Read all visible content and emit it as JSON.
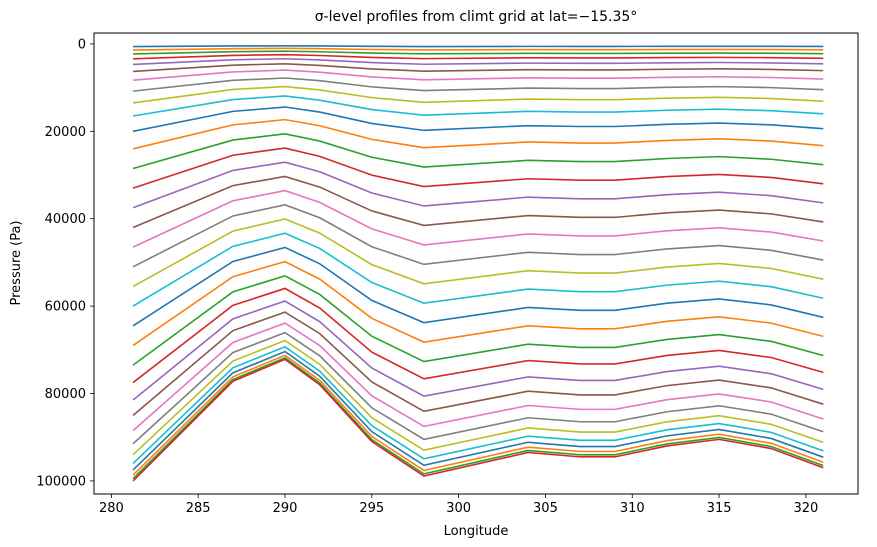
{
  "chart_data": {
    "type": "line",
    "title": "σ-level profiles from climt grid at lat=−15.35°",
    "xlabel": "Longitude",
    "ylabel": "Pressure (Pa)",
    "xlim": [
      279.0,
      323.0
    ],
    "ylim": [
      103000,
      -2500
    ],
    "y_inverted": true,
    "grid": false,
    "legend": "none",
    "xticks": [
      280,
      285,
      290,
      295,
      300,
      305,
      310,
      315,
      320
    ],
    "xtick_labels": [
      "280",
      "285",
      "290",
      "295",
      "300",
      "305",
      "310",
      "315",
      "320"
    ],
    "yticks": [
      0,
      20000,
      40000,
      60000,
      80000,
      100000
    ],
    "ytick_labels": [
      "0",
      "20000",
      "40000",
      "60000",
      "80000",
      "100000"
    ],
    "x": [
      281.25,
      287.0,
      290.0,
      292.0,
      295.0,
      298.0,
      304.0,
      307.0,
      309.0,
      312.0,
      315.0,
      318.0,
      321.0
    ],
    "colors": [
      "#1f77b4",
      "#ff7f0e",
      "#2ca02c",
      "#d62728",
      "#9467bd",
      "#8c564b",
      "#e377c2",
      "#7f7f7f",
      "#bcbd22",
      "#17becf"
    ],
    "surface_pressure": [
      100000,
      77200,
      72200,
      78000,
      91000,
      98900,
      93500,
      94500,
      94500,
      92000,
      90500,
      92600,
      97000
    ],
    "sigma_levels": [
      0.006,
      0.014,
      0.023,
      0.034,
      0.047,
      0.063,
      0.083,
      0.108,
      0.135,
      0.165,
      0.2,
      0.24,
      0.285,
      0.33,
      0.375,
      0.42,
      0.465,
      0.51,
      0.555,
      0.6,
      0.645,
      0.69,
      0.735,
      0.775,
      0.815,
      0.85,
      0.885,
      0.915,
      0.94,
      0.96,
      0.975,
      0.987,
      0.995,
      1.0
    ],
    "top_pressure": 0
  }
}
